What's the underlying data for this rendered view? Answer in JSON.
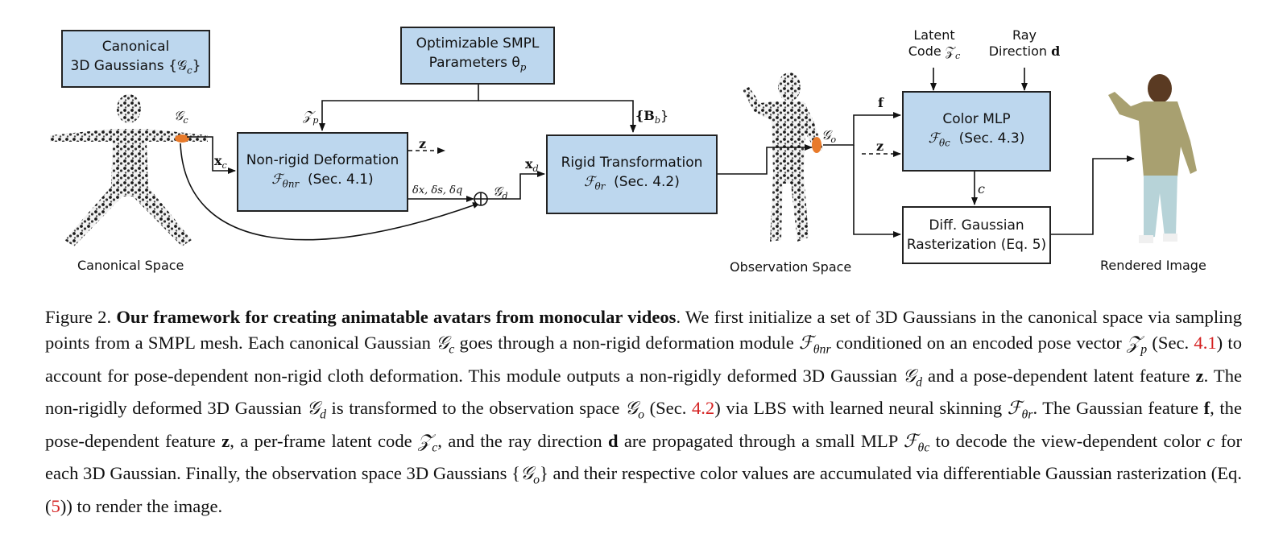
{
  "diagram": {
    "canonical_box": {
      "line1": "Canonical",
      "line2": "3D Gaussians {𝒢",
      "line2_sub": "c",
      "line2_end": "}"
    },
    "smpl_box": {
      "line1": "Optimizable SMPL",
      "line2": "Parameters θ",
      "line2_sub": "p"
    },
    "nonrigid_box": {
      "line1": "Non-rigid Deformation",
      "line2": "ℱ",
      "line2_sub": "θnr",
      "line2_ref": "(Sec. 4.1)"
    },
    "rigid_box": {
      "line1": "Rigid Transformation",
      "line2": "ℱ",
      "line2_sub": "θr",
      "line2_ref": "(Sec. 4.2)"
    },
    "color_box": {
      "line1": "Color MLP",
      "line2": "ℱ",
      "line2_sub": "θc",
      "line2_ref": "(Sec. 4.3)"
    },
    "raster_box": {
      "line1": "Diff. Gaussian",
      "line2": "Rasterization (Eq. 5)"
    },
    "labels": {
      "gc": "𝒢",
      "gc_sub": "c",
      "xc": "x",
      "xc_sub": "c",
      "zp": "𝒵",
      "zp_sub": "p",
      "z_out": "z",
      "deltas": "δx, δs, δq",
      "gd": "𝒢",
      "gd_sub": "d",
      "xd": "x",
      "xd_sub": "d",
      "bb": "{B",
      "bb_sub": "b",
      "bb_end": "}",
      "go": "𝒢",
      "go_sub": "o",
      "f": "f",
      "z_in": "z",
      "latent_line1": "Latent",
      "latent_line2": "Code 𝒵",
      "latent_sub": "c",
      "ray_line1": "Ray",
      "ray_line2": "Direction ",
      "ray_bold": "d",
      "c": "c",
      "canonical_space": "Canonical Space",
      "observation_space": "Observation Space",
      "rendered_image": "Rendered Image"
    }
  },
  "caption": {
    "label": "Figure 2.",
    "title": "Our framework for creating animatable avatars from monocular videos",
    "s1": ". We first initialize a set of 3D Gaussians in the canonical space via sampling points from a SMPL mesh. Each canonical Gaussian ",
    "m_gc": "𝒢",
    "m_gc_sub": "c",
    "s2": " goes through a non-rigid deformation module ",
    "m_fnr": "ℱ",
    "m_fnr_sub": "θnr",
    "s3": " conditioned on an encoded pose vector ",
    "m_zp": "𝒵",
    "m_zp_sub": "p",
    "s4": " (Sec. ",
    "ref1": "4.1",
    "s5": ") to account for pose-dependent non-rigid cloth deformation. This module outputs a non-rigidly deformed 3D Gaussian ",
    "m_gd": "𝒢",
    "m_gd_sub": "d",
    "s6": " and a pose-dependent latent feature ",
    "b_z": "z",
    "s7": ". The non-rigidly deformed 3D Gaussian ",
    "m_gd2": "𝒢",
    "m_gd2_sub": "d",
    "s8": " is transformed to the observation space ",
    "m_go": "𝒢",
    "m_go_sub": "o",
    "s9": " (Sec. ",
    "ref2": "4.2",
    "s10": ") via LBS with learned neural skinning ",
    "m_fr": "ℱ",
    "m_fr_sub": "θr",
    "s11": ". The Gaussian feature ",
    "b_f": "f",
    "s12": ", the pose-dependent feature ",
    "b_z2": "z",
    "s13": ", a per-frame latent code ",
    "m_zc": "𝒵",
    "m_zc_sub": "c",
    "s14": ", and the ray direction ",
    "b_d": "d",
    "s15": " are propagated through a small MLP ",
    "m_fc": "ℱ",
    "m_fc_sub": "θc",
    "s16": " to decode the view-dependent color ",
    "m_c": "c",
    "s17": " for each 3D Gaussian. Finally, the observation space 3D Gaussians {",
    "m_go2": "𝒢",
    "m_go2_sub": "o",
    "s18": "} and their respective color values are accumulated via differentiable Gaussian rasterization (Eq. (",
    "ref3": "5",
    "s19": ")) to render the image."
  }
}
